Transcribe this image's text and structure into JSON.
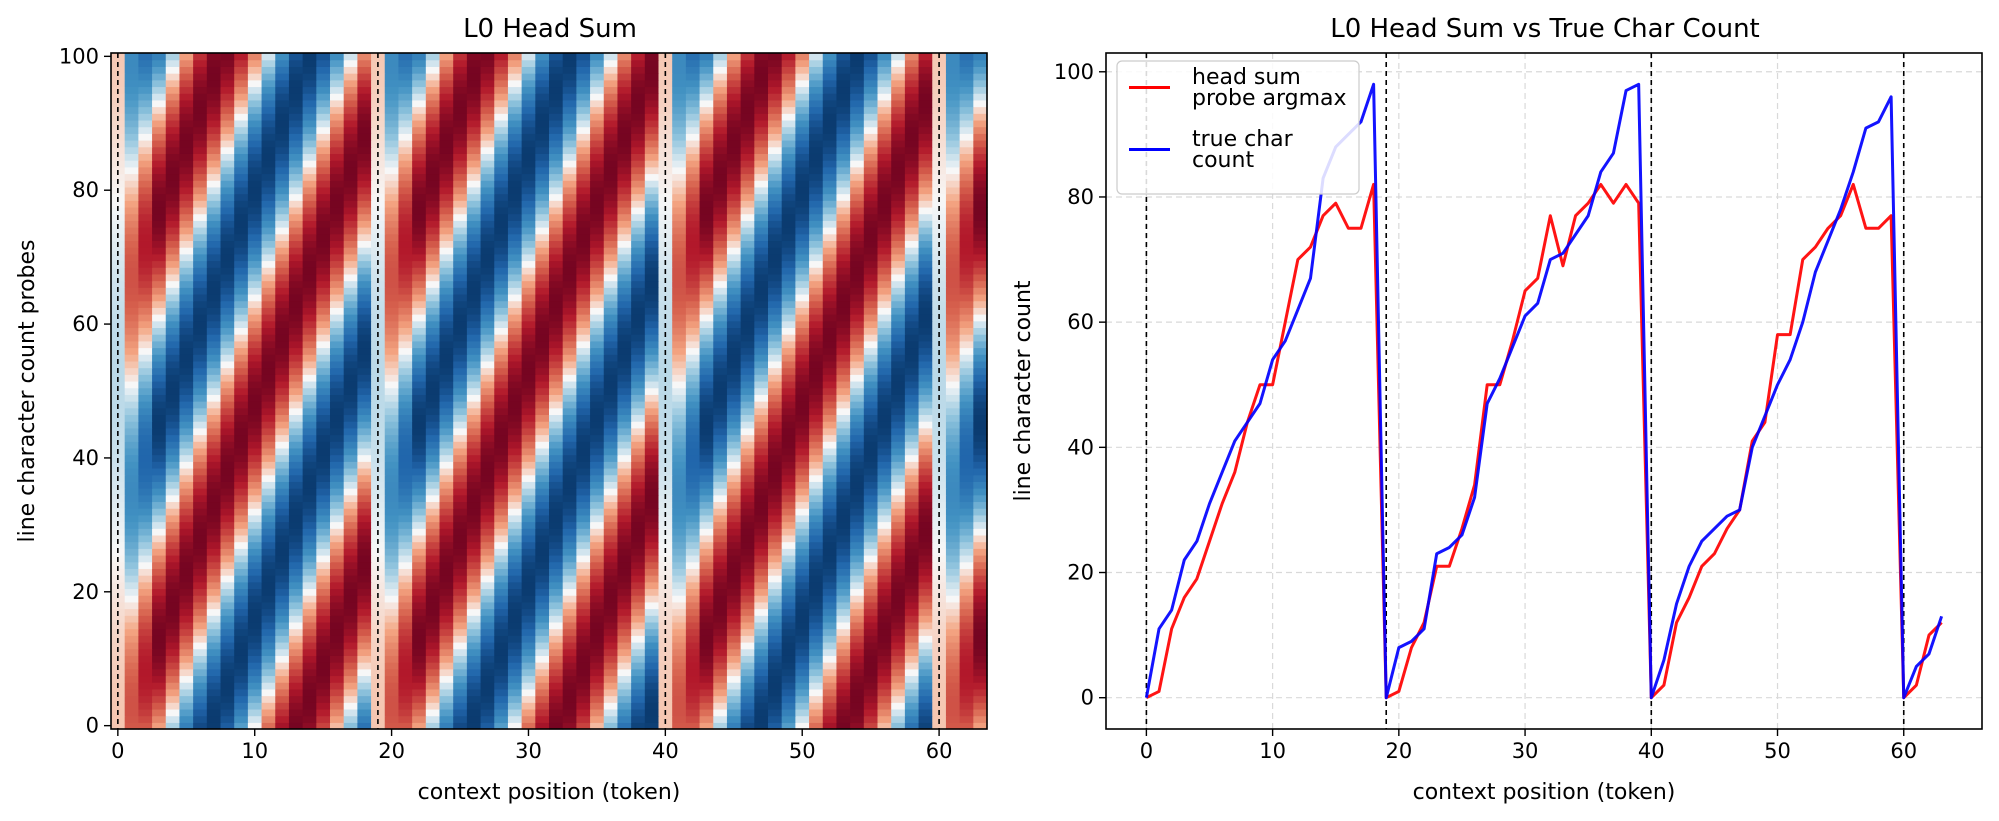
{
  "chart_data": [
    {
      "type": "heatmap",
      "title": "L0 Head Sum",
      "xlabel": "context position (token)",
      "ylabel": "line character count probes",
      "xlim": [
        -0.5,
        63.5
      ],
      "ylim": [
        -0.5,
        100.5
      ],
      "xticks": [
        0,
        10,
        20,
        30,
        40,
        50,
        60
      ],
      "yticks": [
        0,
        20,
        40,
        60,
        80,
        100
      ],
      "grid": false,
      "colormap": "RdBu_r",
      "n_positions": 64,
      "n_probes": 101,
      "segment_starts": [
        0,
        19,
        40,
        60
      ],
      "segment_ends": [
        19,
        40,
        60,
        64
      ],
      "newline_positions": [
        0,
        19,
        40,
        60
      ],
      "band_slope_per_token": 5
    },
    {
      "type": "line",
      "title": "L0 Head Sum vs True Char Count",
      "xlabel": "context position (token)",
      "ylabel": "line character count",
      "xlim": [
        -3.2,
        66.2
      ],
      "ylim": [
        -5,
        103
      ],
      "xticks": [
        0,
        10,
        20,
        30,
        40,
        50,
        60
      ],
      "yticks": [
        0,
        20,
        40,
        60,
        80,
        100
      ],
      "grid": true,
      "legend_location": "top-left",
      "newline_positions": [
        0,
        19,
        40,
        60
      ],
      "x": [
        0,
        1,
        2,
        3,
        4,
        5,
        6,
        7,
        8,
        9,
        10,
        11,
        12,
        13,
        14,
        15,
        16,
        17,
        18,
        19,
        20,
        21,
        22,
        23,
        24,
        25,
        26,
        27,
        28,
        29,
        30,
        31,
        32,
        33,
        34,
        35,
        36,
        37,
        38,
        39,
        40,
        41,
        42,
        43,
        44,
        45,
        46,
        47,
        48,
        49,
        50,
        51,
        52,
        53,
        54,
        55,
        56,
        57,
        58,
        59,
        60,
        61,
        62,
        63
      ],
      "series": [
        {
          "name": "head sum\nprobe argmax",
          "color": "#ff0000",
          "values": [
            0,
            1,
            11,
            16,
            19,
            25,
            31,
            36,
            44,
            50,
            50,
            60,
            70,
            72,
            77,
            79,
            75,
            75,
            82,
            0,
            1,
            8,
            12,
            21,
            21,
            27,
            34,
            50,
            50,
            57,
            65,
            67,
            77,
            69,
            77,
            79,
            82,
            79,
            82,
            79,
            0,
            2,
            12,
            16,
            21,
            23,
            27,
            30,
            41,
            44,
            58,
            58,
            70,
            72,
            75,
            77,
            82,
            75,
            75,
            77,
            0,
            2,
            10,
            12
          ]
        },
        {
          "name": "true char\ncount",
          "color": "#0000ff",
          "values": [
            0,
            11,
            14,
            22,
            25,
            31,
            36,
            41,
            44,
            47,
            54,
            57,
            62,
            67,
            83,
            88,
            90,
            92,
            98,
            0,
            8,
            9,
            11,
            23,
            24,
            26,
            32,
            47,
            51,
            56,
            61,
            63,
            70,
            71,
            74,
            77,
            84,
            87,
            97,
            98,
            0,
            6,
            15,
            21,
            25,
            27,
            29,
            30,
            40,
            45,
            50,
            54,
            60,
            68,
            73,
            78,
            84,
            91,
            92,
            96,
            0,
            5,
            7,
            13
          ]
        }
      ]
    }
  ]
}
